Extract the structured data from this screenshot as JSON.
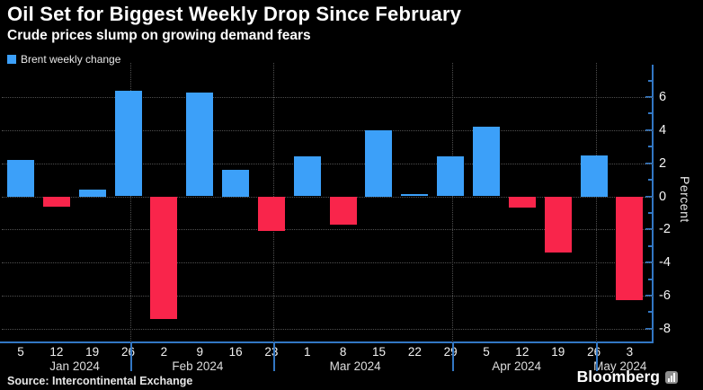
{
  "header": {
    "title": "Oil Set for Biggest Weekly Drop Since February",
    "subtitle": "Crude prices slump on growing demand fears"
  },
  "legend": {
    "label": "Brent weekly change"
  },
  "footer": {
    "source": "Source: Intercontinental Exchange",
    "brand": "Bloomberg"
  },
  "chart_data": {
    "type": "bar",
    "title": "Oil Set for Biggest Weekly Drop Since February",
    "subtitle": "Crude prices slump on growing demand fears",
    "series_name": "Brent weekly change",
    "ylabel": "Percent",
    "source": "Source: Intercontinental Exchange",
    "categories": [
      "5",
      "12",
      "19",
      "26",
      "2",
      "9",
      "16",
      "23",
      "1",
      "8",
      "15",
      "22",
      "29",
      "5",
      "12",
      "19",
      "26",
      "3"
    ],
    "values": [
      2.2,
      -0.6,
      0.4,
      6.4,
      -7.4,
      6.3,
      1.6,
      -2.1,
      2.4,
      -1.7,
      4.0,
      0.15,
      2.4,
      4.2,
      -0.7,
      -3.4,
      2.5,
      -6.3
    ],
    "months": [
      {
        "label": "Jan 2024",
        "label_x_pct": 11.2
      },
      {
        "label": "Feb 2024",
        "label_x_pct": 30.1
      },
      {
        "label": "Mar 2024",
        "label_x_pct": 54.3
      },
      {
        "label": "Apr 2024",
        "label_x_pct": 79.1
      },
      {
        "label": "May 2024",
        "label_x_pct": 95.0
      }
    ],
    "month_boundaries_after": [
      3,
      7,
      12,
      16
    ],
    "yticks_labeled": [
      6,
      4,
      2,
      0,
      -2,
      -4,
      -6,
      -8
    ],
    "minor_tick_range": [
      -8,
      7
    ],
    "ylim": [
      -8.83,
      8.07
    ],
    "y_axis_side": "right",
    "legend_position": "top-left",
    "grid": true,
    "colors": {
      "positive": "#3CA0F9",
      "negative": "#F9254B",
      "axis": "#3277C4",
      "grid_dots": "#4f4f4f"
    },
    "layout": {
      "first_center_pct": 2.9,
      "step_pct": 5.504,
      "bar_width_pct": 4.15,
      "divider_offset_pct": 0.3
    }
  }
}
